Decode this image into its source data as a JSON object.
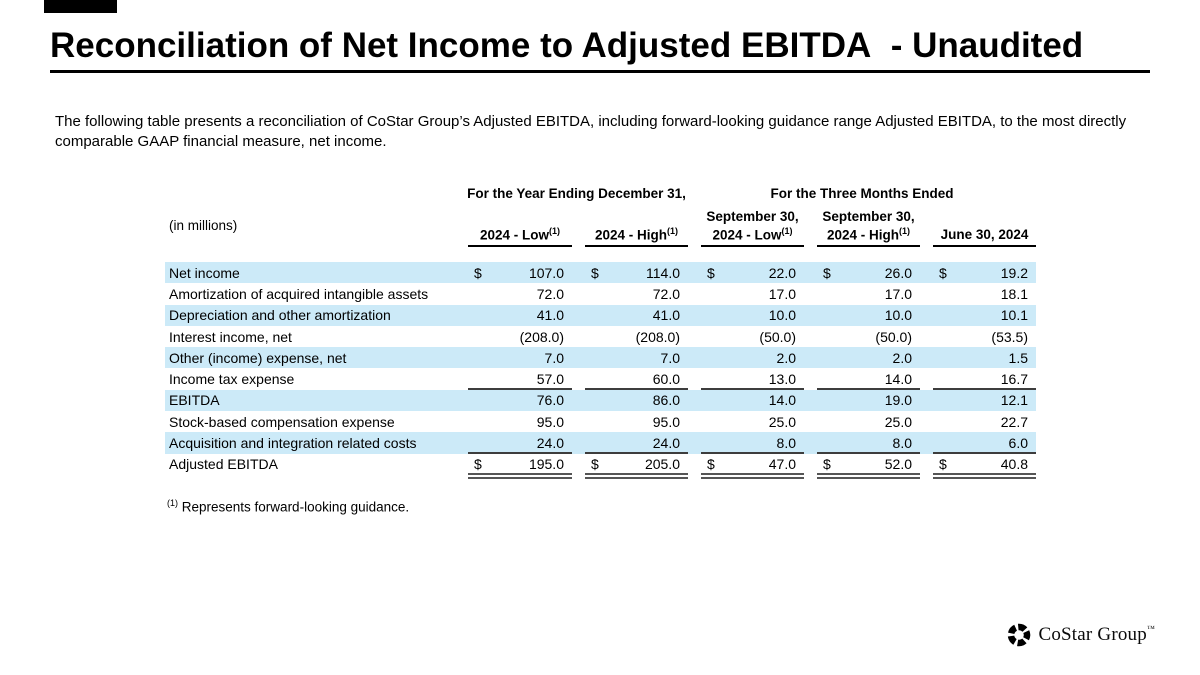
{
  "title": "Reconciliation of Net Income to Adjusted EBITDA  - Unaudited",
  "intro": "The following table presents a reconciliation of CoStar Group’s Adjusted EBITDA, including forward-looking guidance range Adjusted EBITDA, to the most directly comparable GAAP financial measure, net income.",
  "table": {
    "in_millions": "(in millions)",
    "currency": "$",
    "group_headers": [
      {
        "label": "For the Year Ending December 31,",
        "span": 2
      },
      {
        "label": "For the Three Months Ended",
        "span": 3
      }
    ],
    "columns": [
      {
        "line1": "",
        "line2": "2024 - Low",
        "sup": "(1)"
      },
      {
        "line1": "",
        "line2": "2024 - High",
        "sup": "(1)"
      },
      {
        "line1": "September 30,",
        "line2": "2024 - Low",
        "sup": "(1)"
      },
      {
        "line1": "September 30,",
        "line2": "2024 - High",
        "sup": "(1)"
      },
      {
        "line1": "",
        "line2": "June 30, 2024",
        "sup": ""
      }
    ],
    "rows": [
      {
        "label": "Net income",
        "values": [
          "107.0",
          "114.0",
          "22.0",
          "26.0",
          "19.2"
        ],
        "dollar": true,
        "shaded": true,
        "rule_below": null
      },
      {
        "label": "Amortization of acquired intangible assets",
        "values": [
          "72.0",
          "72.0",
          "17.0",
          "17.0",
          "18.1"
        ],
        "dollar": false,
        "shaded": false,
        "rule_below": null
      },
      {
        "label": "Depreciation and other amortization",
        "values": [
          "41.0",
          "41.0",
          "10.0",
          "10.0",
          "10.1"
        ],
        "dollar": false,
        "shaded": true,
        "rule_below": null
      },
      {
        "label": "Interest income, net",
        "values": [
          "(208.0)",
          "(208.0)",
          "(50.0)",
          "(50.0)",
          "(53.5)"
        ],
        "dollar": false,
        "shaded": false,
        "rule_below": null
      },
      {
        "label": "Other (income) expense, net",
        "values": [
          "7.0",
          "7.0",
          "2.0",
          "2.0",
          "1.5"
        ],
        "dollar": false,
        "shaded": true,
        "rule_below": null
      },
      {
        "label": "Income tax expense",
        "values": [
          "57.0",
          "60.0",
          "13.0",
          "14.0",
          "16.7"
        ],
        "dollar": false,
        "shaded": false,
        "rule_below": "single"
      },
      {
        "label": "EBITDA",
        "values": [
          "76.0",
          "86.0",
          "14.0",
          "19.0",
          "12.1"
        ],
        "dollar": false,
        "shaded": true,
        "rule_below": null
      },
      {
        "label": "Stock-based compensation expense",
        "values": [
          "95.0",
          "95.0",
          "25.0",
          "25.0",
          "22.7"
        ],
        "dollar": false,
        "shaded": false,
        "rule_below": null
      },
      {
        "label": "Acquisition and integration related costs",
        "values": [
          "24.0",
          "24.0",
          "8.0",
          "8.0",
          "6.0"
        ],
        "dollar": false,
        "shaded": true,
        "rule_below": "single"
      },
      {
        "label": "Adjusted EBITDA",
        "values": [
          "195.0",
          "205.0",
          "47.0",
          "52.0",
          "40.8"
        ],
        "dollar": true,
        "shaded": false,
        "rule_below": "double"
      }
    ]
  },
  "footnote": {
    "sup": "(1)",
    "text": "Represents forward-looking guidance."
  },
  "logo": {
    "text": "CoStar Group",
    "tm": "™"
  },
  "colors": {
    "row_highlight": "#cceaf8",
    "accent": "#000000"
  }
}
